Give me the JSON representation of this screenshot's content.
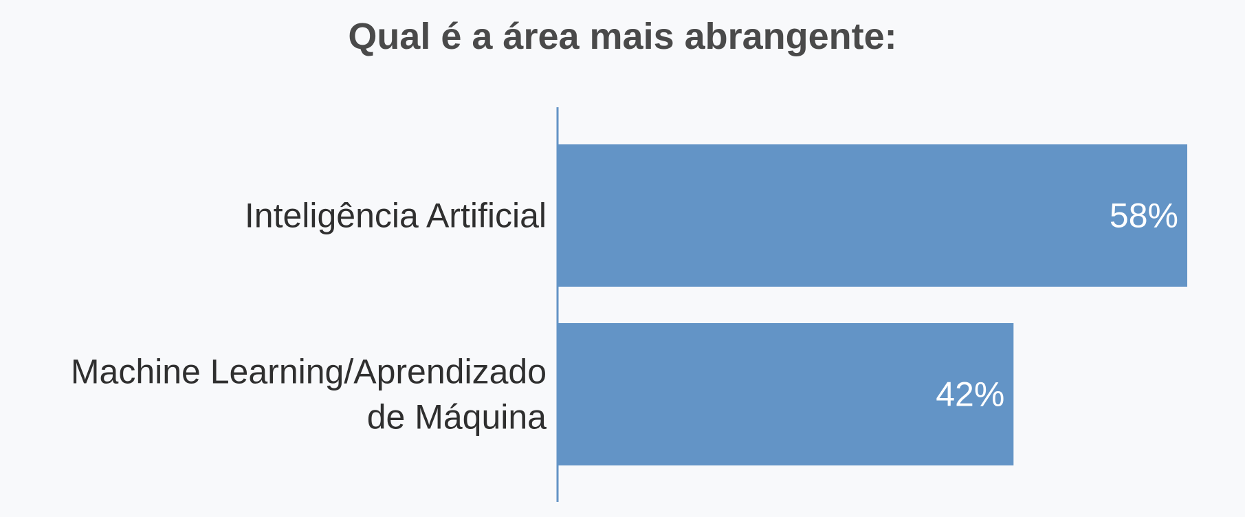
{
  "chart_data": {
    "type": "bar",
    "orientation": "horizontal",
    "title": "Qual é a área mais abrangente:",
    "categories": [
      [
        "Inteligência Artificial"
      ],
      [
        "Machine Learning/Aprendizado",
        "de Máquina"
      ]
    ],
    "values": [
      58,
      42
    ],
    "value_labels": [
      "58%",
      "42%"
    ],
    "xlim": [
      0,
      58
    ],
    "grid": false,
    "legend": "none",
    "colors": {
      "bar": "#6394c6",
      "axis": "#6394c6",
      "background": "#f8f9fb",
      "title": "#4a4a4a",
      "label": "#2f2f2f",
      "value_label": "#ffffff"
    }
  }
}
